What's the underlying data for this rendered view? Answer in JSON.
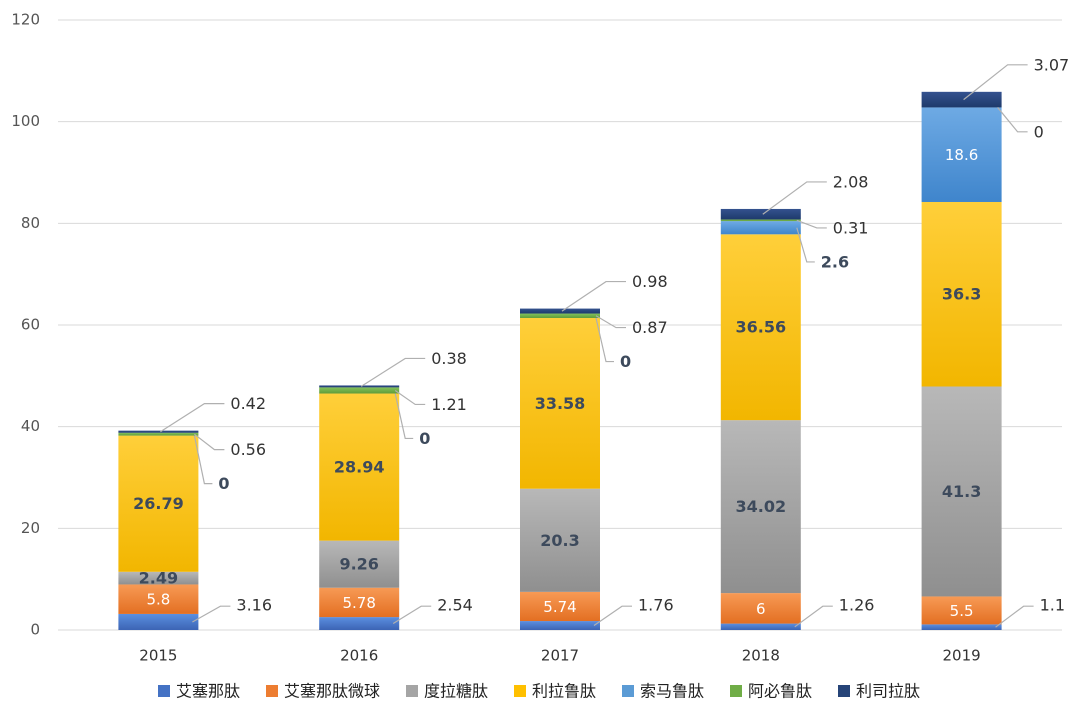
{
  "chart_data": {
    "type": "bar",
    "stacked": true,
    "categories": [
      "2015",
      "2016",
      "2017",
      "2018",
      "2019"
    ],
    "ylim": [
      0,
      120
    ],
    "yticks": [
      "0",
      "20",
      "40",
      "60",
      "80",
      "100",
      "120"
    ],
    "grid": true,
    "legend_position": "bottom",
    "series": [
      {
        "name": "艾塞那肽",
        "color": "#4472c4",
        "values": [
          3.16,
          2.54,
          1.76,
          1.26,
          1.1
        ],
        "labels": [
          "3.16",
          "2.54",
          "1.76",
          "1.26",
          "1.1"
        ]
      },
      {
        "name": "艾塞那肽微球",
        "color": "#ed7d31",
        "values": [
          5.8,
          5.78,
          5.74,
          6,
          5.5
        ],
        "labels": [
          "5.8",
          "5.78",
          "5.74",
          "6",
          "5.5"
        ]
      },
      {
        "name": "度拉糖肽",
        "color": "#a5a5a5",
        "values": [
          2.49,
          9.26,
          20.3,
          34.02,
          41.3
        ],
        "labels": [
          "2.49",
          "9.26",
          "20.3",
          "34.02",
          "41.3"
        ]
      },
      {
        "name": "利拉鲁肽",
        "color": "#ffc000",
        "values": [
          26.79,
          28.94,
          33.58,
          36.56,
          36.3
        ],
        "labels": [
          "26.79",
          "28.94",
          "33.58",
          "36.56",
          "36.3"
        ]
      },
      {
        "name": "索马鲁肽",
        "color": "#5b9bd5",
        "values": [
          0,
          0,
          0,
          2.6,
          18.6
        ],
        "labels": [
          "0",
          "0",
          "0",
          "2.6",
          "18.6"
        ]
      },
      {
        "name": "阿必鲁肽",
        "color": "#70ad47",
        "values": [
          0.56,
          1.21,
          0.87,
          0.31,
          0
        ],
        "labels": [
          "0.56",
          "1.21",
          "0.87",
          "0.31",
          "0"
        ]
      },
      {
        "name": "利司拉肽",
        "color": "#264478",
        "values": [
          0.42,
          0.38,
          0.98,
          2.08,
          3.07
        ],
        "labels": [
          "0.42",
          "0.38",
          "0.98",
          "2.08",
          "3.07"
        ]
      }
    ]
  }
}
